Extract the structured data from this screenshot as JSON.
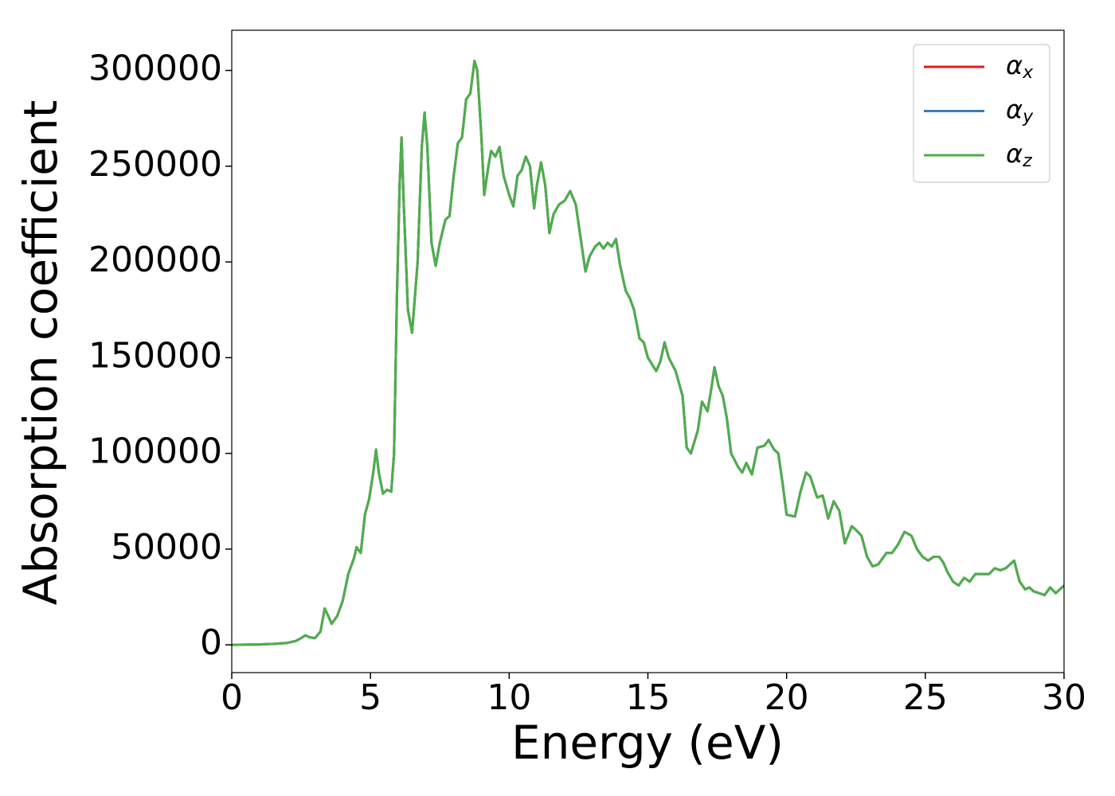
{
  "chart_data": {
    "type": "line",
    "xlabel": "Energy (eV)",
    "ylabel": "Absorption coefficient",
    "x": [
      0,
      1,
      1.5,
      2,
      2.3,
      2.5,
      2.65,
      2.8,
      3,
      3.2,
      3.35,
      3.45,
      3.6,
      3.8,
      4,
      4.2,
      4.4,
      4.5,
      4.65,
      4.8,
      4.95,
      5.1,
      5.2,
      5.3,
      5.45,
      5.6,
      5.75,
      5.85,
      5.95,
      6.05,
      6.12,
      6.2,
      6.35,
      6.5,
      6.7,
      6.85,
      6.95,
      7.05,
      7.2,
      7.35,
      7.5,
      7.7,
      7.85,
      8,
      8.15,
      8.3,
      8.45,
      8.6,
      8.75,
      8.85,
      9,
      9.1,
      9.25,
      9.35,
      9.5,
      9.65,
      9.8,
      10,
      10.15,
      10.3,
      10.45,
      10.6,
      10.75,
      10.9,
      11,
      11.15,
      11.3,
      11.45,
      11.6,
      11.8,
      12,
      12.2,
      12.4,
      12.6,
      12.75,
      12.9,
      13.1,
      13.25,
      13.4,
      13.55,
      13.7,
      13.85,
      14,
      14.2,
      14.35,
      14.5,
      14.7,
      14.85,
      15,
      15.3,
      15.45,
      15.6,
      15.75,
      16,
      16.25,
      16.4,
      16.55,
      16.8,
      16.95,
      17.15,
      17.3,
      17.4,
      17.55,
      17.7,
      17.85,
      18,
      18.25,
      18.4,
      18.55,
      18.75,
      18.95,
      19.2,
      19.35,
      19.55,
      19.7,
      19.85,
      20,
      20.3,
      20.5,
      20.7,
      20.85,
      21.1,
      21.3,
      21.5,
      21.7,
      21.9,
      22.1,
      22.35,
      22.5,
      22.7,
      22.9,
      23.1,
      23.3,
      23.6,
      23.8,
      24,
      24.25,
      24.5,
      24.7,
      24.9,
      25.1,
      25.3,
      25.5,
      25.65,
      25.8,
      26,
      26.2,
      26.4,
      26.6,
      26.8,
      27.1,
      27.3,
      27.5,
      27.7,
      27.9,
      28.2,
      28.4,
      28.6,
      28.75,
      28.9,
      29.1,
      29.3,
      29.5,
      29.7,
      30
    ],
    "series": [
      {
        "name": "αx",
        "color": "#e41a1c",
        "values": [
          0,
          200,
          500,
          1000,
          2000,
          3500,
          5000,
          4000,
          3500,
          7000,
          19000,
          16000,
          11000,
          15000,
          23000,
          37000,
          45000,
          51000,
          48000,
          68000,
          76000,
          90000,
          102000,
          90000,
          79000,
          81000,
          80000,
          100000,
          180000,
          240000,
          265000,
          230000,
          175000,
          163000,
          200000,
          260000,
          278000,
          260000,
          210000,
          198000,
          210000,
          222000,
          224000,
          245000,
          262000,
          265000,
          285000,
          288000,
          305000,
          300000,
          265000,
          235000,
          250000,
          258000,
          255000,
          260000,
          245000,
          235000,
          229000,
          245000,
          248000,
          255000,
          250000,
          228000,
          240000,
          252000,
          240000,
          215000,
          225000,
          230000,
          232000,
          237000,
          230000,
          210000,
          195000,
          203000,
          208000,
          210000,
          207000,
          210000,
          208000,
          212000,
          198000,
          185000,
          181000,
          175000,
          160000,
          158000,
          150000,
          143000,
          148000,
          158000,
          150000,
          143000,
          130000,
          103000,
          100000,
          112000,
          127000,
          122000,
          135000,
          145000,
          135000,
          130000,
          118000,
          100000,
          93000,
          90000,
          95000,
          89000,
          103000,
          104000,
          107000,
          102000,
          100000,
          85000,
          68000,
          67000,
          80000,
          90000,
          88000,
          77000,
          78000,
          66000,
          75000,
          70000,
          53000,
          62000,
          60000,
          57000,
          46000,
          41000,
          42000,
          48000,
          48000,
          52000,
          59000,
          57000,
          50000,
          46000,
          44000,
          46000,
          46000,
          43000,
          38000,
          33000,
          31000,
          35000,
          33000,
          37000,
          37000,
          37000,
          40000,
          39000,
          40000,
          44000,
          33000,
          29000,
          30000,
          28000,
          27000,
          26000,
          30000,
          27000,
          31000
        ]
      },
      {
        "name": "αy",
        "color": "#377eb8",
        "values": [
          0,
          200,
          500,
          1000,
          2000,
          3500,
          5000,
          4000,
          3500,
          7000,
          19000,
          16000,
          11000,
          15000,
          23000,
          37000,
          45000,
          51000,
          48000,
          68000,
          76000,
          90000,
          102000,
          90000,
          79000,
          81000,
          80000,
          100000,
          180000,
          240000,
          265000,
          230000,
          175000,
          163000,
          200000,
          260000,
          278000,
          260000,
          210000,
          198000,
          210000,
          222000,
          224000,
          245000,
          262000,
          265000,
          285000,
          288000,
          305000,
          300000,
          265000,
          235000,
          250000,
          258000,
          255000,
          260000,
          245000,
          235000,
          229000,
          245000,
          248000,
          255000,
          250000,
          228000,
          240000,
          252000,
          240000,
          215000,
          225000,
          230000,
          232000,
          237000,
          230000,
          210000,
          195000,
          203000,
          208000,
          210000,
          207000,
          210000,
          208000,
          212000,
          198000,
          185000,
          181000,
          175000,
          160000,
          158000,
          150000,
          143000,
          148000,
          158000,
          150000,
          143000,
          130000,
          103000,
          100000,
          112000,
          127000,
          122000,
          135000,
          145000,
          135000,
          130000,
          118000,
          100000,
          93000,
          90000,
          95000,
          89000,
          103000,
          104000,
          107000,
          102000,
          100000,
          85000,
          68000,
          67000,
          80000,
          90000,
          88000,
          77000,
          78000,
          66000,
          75000,
          70000,
          53000,
          62000,
          60000,
          57000,
          46000,
          41000,
          42000,
          48000,
          48000,
          52000,
          59000,
          57000,
          50000,
          46000,
          44000,
          46000,
          46000,
          43000,
          38000,
          33000,
          31000,
          35000,
          33000,
          37000,
          37000,
          37000,
          40000,
          39000,
          40000,
          44000,
          33000,
          29000,
          30000,
          28000,
          27000,
          26000,
          30000,
          27000,
          31000
        ]
      },
      {
        "name": "αz",
        "color": "#4daf4a",
        "values": [
          0,
          200,
          500,
          1000,
          2000,
          3500,
          5000,
          4000,
          3500,
          7000,
          19000,
          16000,
          11000,
          15000,
          23000,
          37000,
          45000,
          51000,
          48000,
          68000,
          76000,
          90000,
          102000,
          90000,
          79000,
          81000,
          80000,
          100000,
          180000,
          240000,
          265000,
          230000,
          175000,
          163000,
          200000,
          260000,
          278000,
          260000,
          210000,
          198000,
          210000,
          222000,
          224000,
          245000,
          262000,
          265000,
          285000,
          288000,
          305000,
          300000,
          265000,
          235000,
          250000,
          258000,
          255000,
          260000,
          245000,
          235000,
          229000,
          245000,
          248000,
          255000,
          250000,
          228000,
          240000,
          252000,
          240000,
          215000,
          225000,
          230000,
          232000,
          237000,
          230000,
          210000,
          195000,
          203000,
          208000,
          210000,
          207000,
          210000,
          208000,
          212000,
          198000,
          185000,
          181000,
          175000,
          160000,
          158000,
          150000,
          143000,
          148000,
          158000,
          150000,
          143000,
          130000,
          103000,
          100000,
          112000,
          127000,
          122000,
          135000,
          145000,
          135000,
          130000,
          118000,
          100000,
          93000,
          90000,
          95000,
          89000,
          103000,
          104000,
          107000,
          102000,
          100000,
          85000,
          68000,
          67000,
          80000,
          90000,
          88000,
          77000,
          78000,
          66000,
          75000,
          70000,
          53000,
          62000,
          60000,
          57000,
          46000,
          41000,
          42000,
          48000,
          48000,
          52000,
          59000,
          57000,
          50000,
          46000,
          44000,
          46000,
          46000,
          43000,
          38000,
          33000,
          31000,
          35000,
          33000,
          37000,
          37000,
          37000,
          40000,
          39000,
          40000,
          44000,
          33000,
          29000,
          30000,
          28000,
          27000,
          26000,
          30000,
          27000,
          31000
        ]
      }
    ],
    "xlim": [
      0,
      30
    ],
    "xticks": [
      0,
      5,
      10,
      15,
      20,
      25,
      30
    ],
    "ylim": [
      -14500,
      321000
    ],
    "yticks": [
      0,
      50000,
      100000,
      150000,
      200000,
      250000,
      300000
    ],
    "grid": false,
    "legend": "upper right"
  }
}
